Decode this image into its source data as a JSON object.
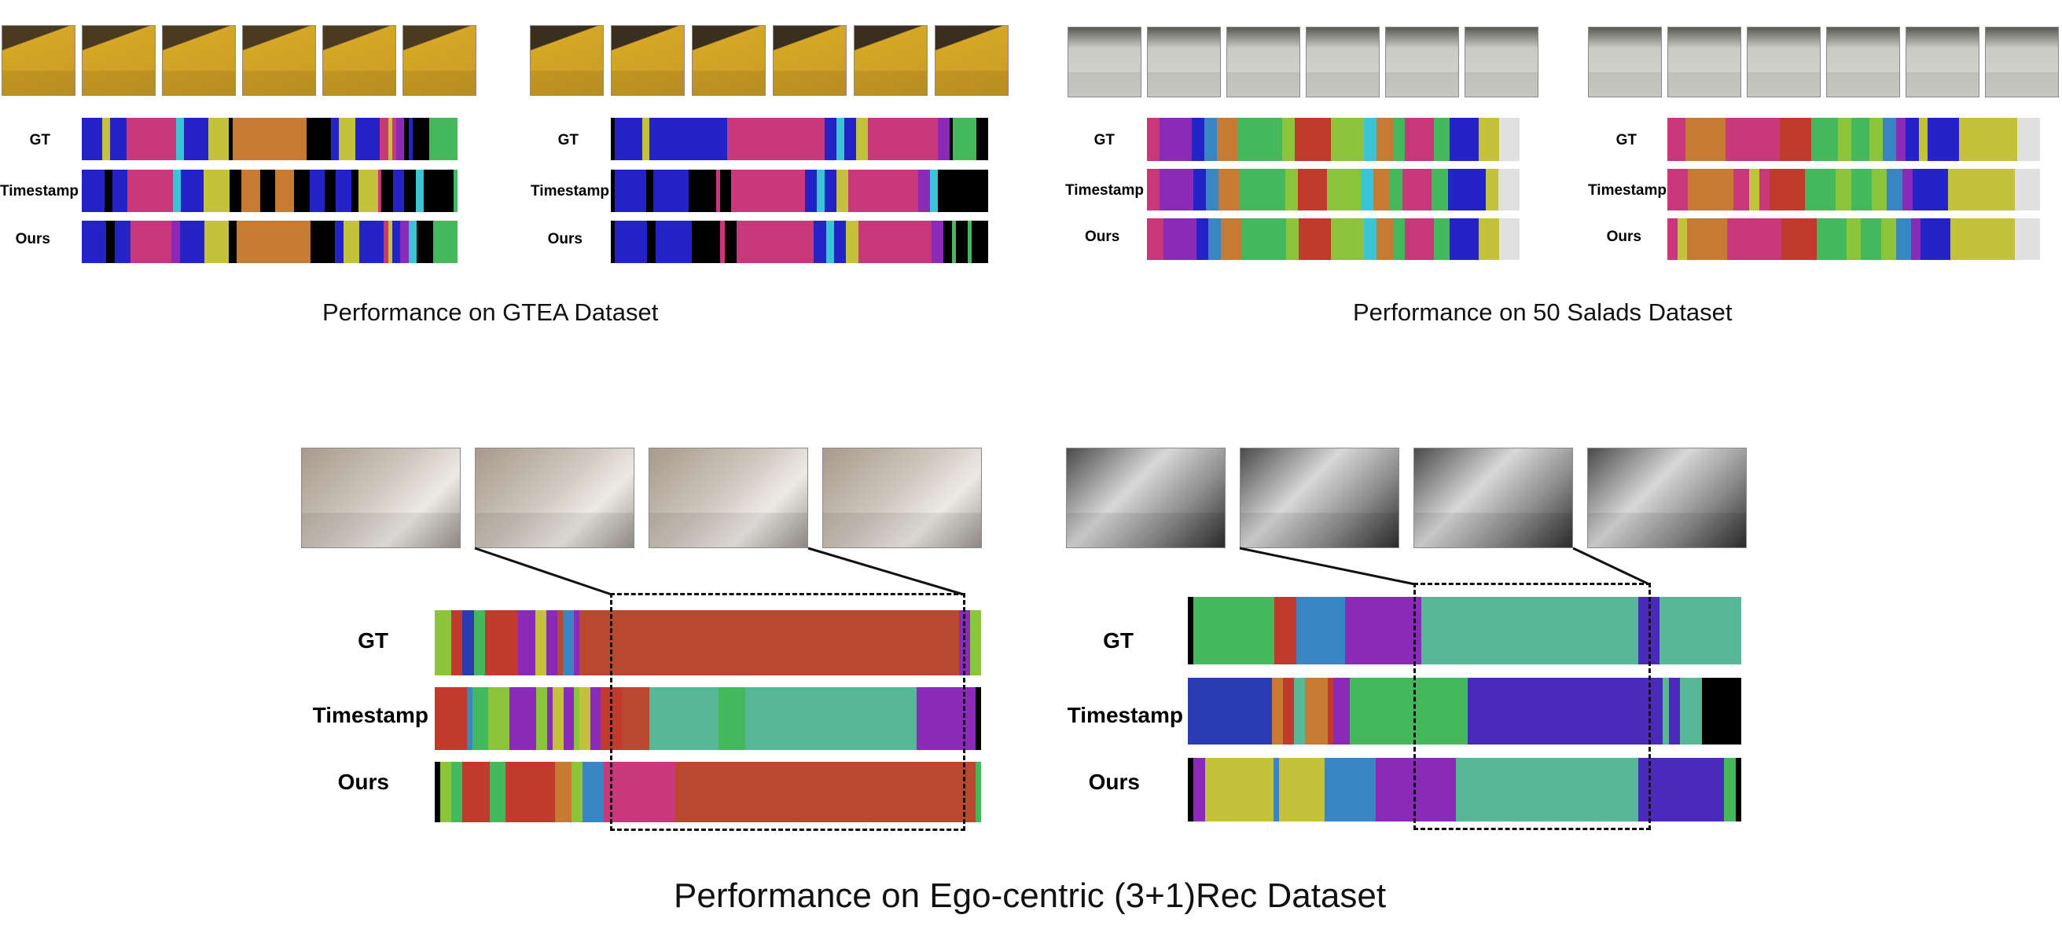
{
  "colors": {
    "blue": "#2323c8",
    "magenta": "#c8387a",
    "black": "#000000",
    "olive": "#c4c23a",
    "orange": "#c67a32",
    "cyan": "#3ac4d6",
    "green": "#44b85a",
    "purple": "#8a2ab8",
    "steel": "#3a86c4",
    "red": "#c23a2e",
    "lightgray": "#e0e0e0",
    "teal": "#56b896",
    "rust": "#b8482e",
    "lime": "#8cc43a",
    "navy": "#2a3cb4",
    "violet": "#4a2ab8"
  },
  "panels": {
    "gtea": {
      "caption": "Performance on GTEA Dataset",
      "rows": [
        "GT",
        "Timestamp",
        "Ours"
      ],
      "left_bars": {
        "GT": [
          [
            "blue",
            5
          ],
          [
            "olive",
            2
          ],
          [
            "blue",
            4
          ],
          [
            "magenta",
            12
          ],
          [
            "cyan",
            2
          ],
          [
            "blue",
            6
          ],
          [
            "olive",
            5
          ],
          [
            "black",
            1
          ],
          [
            "orange",
            18
          ],
          [
            "black",
            6
          ],
          [
            "blue",
            2
          ],
          [
            "olive",
            4
          ],
          [
            "blue",
            6
          ],
          [
            "magenta",
            2
          ],
          [
            "olive",
            1
          ],
          [
            "magenta",
            1
          ],
          [
            "purple",
            2
          ],
          [
            "black",
            1
          ],
          [
            "blue",
            1
          ],
          [
            "black",
            4
          ],
          [
            "green",
            7
          ]
        ],
        "Timestamp": [
          [
            "blue",
            6
          ],
          [
            "black",
            2
          ],
          [
            "blue",
            4
          ],
          [
            "magenta",
            12
          ],
          [
            "cyan",
            2
          ],
          [
            "blue",
            6
          ],
          [
            "olive",
            7
          ],
          [
            "black",
            3
          ],
          [
            "orange",
            5
          ],
          [
            "black",
            4
          ],
          [
            "orange",
            5
          ],
          [
            "black",
            4
          ],
          [
            "blue",
            4
          ],
          [
            "black",
            3
          ],
          [
            "blue",
            4
          ],
          [
            "black",
            2
          ],
          [
            "olive",
            5
          ],
          [
            "magenta",
            1
          ],
          [
            "black",
            3
          ],
          [
            "blue",
            3
          ],
          [
            "black",
            3
          ],
          [
            "cyan",
            2
          ],
          [
            "black",
            8
          ],
          [
            "green",
            1
          ]
        ],
        "Ours": [
          [
            "blue",
            6
          ],
          [
            "black",
            2
          ],
          [
            "blue",
            4
          ],
          [
            "magenta",
            10
          ],
          [
            "purple",
            2
          ],
          [
            "blue",
            6
          ],
          [
            "olive",
            6
          ],
          [
            "black",
            2
          ],
          [
            "orange",
            18
          ],
          [
            "black",
            6
          ],
          [
            "blue",
            2
          ],
          [
            "olive",
            4
          ],
          [
            "blue",
            6
          ],
          [
            "magenta",
            1
          ],
          [
            "olive",
            1
          ],
          [
            "blue",
            2
          ],
          [
            "purple",
            2
          ],
          [
            "cyan",
            2
          ],
          [
            "black",
            4
          ],
          [
            "green",
            6
          ]
        ]
      },
      "right_bars": {
        "GT": [
          [
            "black",
            1
          ],
          [
            "blue",
            7
          ],
          [
            "olive",
            2
          ],
          [
            "blue",
            20
          ],
          [
            "magenta",
            25
          ],
          [
            "blue",
            3
          ],
          [
            "cyan",
            2
          ],
          [
            "blue",
            3
          ],
          [
            "olive",
            3
          ],
          [
            "magenta",
            18
          ],
          [
            "purple",
            3
          ],
          [
            "black",
            1
          ],
          [
            "green",
            6
          ],
          [
            "black",
            3
          ]
        ],
        "Timestamp": [
          [
            "black",
            1
          ],
          [
            "blue",
            8
          ],
          [
            "black",
            2
          ],
          [
            "blue",
            9
          ],
          [
            "black",
            7
          ],
          [
            "magenta",
            1
          ],
          [
            "black",
            3
          ],
          [
            "magenta",
            19
          ],
          [
            "blue",
            3
          ],
          [
            "cyan",
            2
          ],
          [
            "blue",
            3
          ],
          [
            "olive",
            3
          ],
          [
            "magenta",
            18
          ],
          [
            "purple",
            3
          ],
          [
            "cyan",
            2
          ],
          [
            "black",
            13
          ]
        ],
        "Ours": [
          [
            "black",
            1
          ],
          [
            "blue",
            8
          ],
          [
            "black",
            2
          ],
          [
            "blue",
            9
          ],
          [
            "black",
            7
          ],
          [
            "magenta",
            1
          ],
          [
            "black",
            3
          ],
          [
            "magenta",
            19
          ],
          [
            "blue",
            3
          ],
          [
            "cyan",
            2
          ],
          [
            "blue",
            3
          ],
          [
            "olive",
            3
          ],
          [
            "magenta",
            18
          ],
          [
            "purple",
            3
          ],
          [
            "black",
            2
          ],
          [
            "green",
            1
          ],
          [
            "black",
            3
          ],
          [
            "green",
            1
          ],
          [
            "black",
            4
          ]
        ]
      }
    },
    "salads": {
      "caption": "Performance on 50 Salads Dataset",
      "rows": [
        "GT",
        "Timestamp",
        "Ours"
      ],
      "left_bars": {
        "GT": [
          [
            "magenta",
            3
          ],
          [
            "purple",
            8
          ],
          [
            "blue",
            3
          ],
          [
            "steel",
            3
          ],
          [
            "orange",
            5
          ],
          [
            "green",
            11
          ],
          [
            "lime",
            3
          ],
          [
            "red",
            9
          ],
          [
            "lime",
            8
          ],
          [
            "cyan",
            3
          ],
          [
            "orange",
            4
          ],
          [
            "green",
            3
          ],
          [
            "magenta",
            7
          ],
          [
            "green",
            4
          ],
          [
            "blue",
            7
          ],
          [
            "olive",
            5
          ],
          [
            "lightgray",
            5
          ]
        ],
        "Timestamp": [
          [
            "magenta",
            3
          ],
          [
            "purple",
            8
          ],
          [
            "blue",
            3
          ],
          [
            "steel",
            3
          ],
          [
            "orange",
            5
          ],
          [
            "green",
            11
          ],
          [
            "lime",
            3
          ],
          [
            "red",
            7
          ],
          [
            "lime",
            8
          ],
          [
            "cyan",
            3
          ],
          [
            "orange",
            4
          ],
          [
            "green",
            3
          ],
          [
            "magenta",
            7
          ],
          [
            "green",
            4
          ],
          [
            "blue",
            9
          ],
          [
            "olive",
            3
          ],
          [
            "lightgray",
            5
          ]
        ],
        "Ours": [
          [
            "magenta",
            4
          ],
          [
            "purple",
            8
          ],
          [
            "blue",
            3
          ],
          [
            "steel",
            3
          ],
          [
            "orange",
            5
          ],
          [
            "green",
            11
          ],
          [
            "lime",
            3
          ],
          [
            "red",
            8
          ],
          [
            "lime",
            8
          ],
          [
            "cyan",
            3
          ],
          [
            "orange",
            4
          ],
          [
            "green",
            3
          ],
          [
            "magenta",
            7
          ],
          [
            "green",
            4
          ],
          [
            "blue",
            7
          ],
          [
            "olive",
            5
          ],
          [
            "lightgray",
            5
          ]
        ]
      },
      "right_bars": {
        "GT": [
          [
            "magenta",
            4
          ],
          [
            "orange",
            9
          ],
          [
            "magenta",
            12
          ],
          [
            "red",
            7
          ],
          [
            "green",
            6
          ],
          [
            "lime",
            3
          ],
          [
            "green",
            4
          ],
          [
            "lime",
            3
          ],
          [
            "steel",
            3
          ],
          [
            "purple",
            2
          ],
          [
            "blue",
            3
          ],
          [
            "olive",
            2
          ],
          [
            "blue",
            7
          ],
          [
            "olive",
            13
          ],
          [
            "lightgray",
            5
          ]
        ],
        "Timestamp": [
          [
            "magenta",
            4
          ],
          [
            "orange",
            9
          ],
          [
            "magenta",
            3
          ],
          [
            "olive",
            2
          ],
          [
            "magenta",
            2
          ],
          [
            "red",
            7
          ],
          [
            "green",
            6
          ],
          [
            "lime",
            3
          ],
          [
            "green",
            4
          ],
          [
            "lime",
            3
          ],
          [
            "steel",
            3
          ],
          [
            "purple",
            2
          ],
          [
            "blue",
            7
          ],
          [
            "olive",
            13
          ],
          [
            "lightgray",
            5
          ]
        ],
        "Ours": [
          [
            "magenta",
            2
          ],
          [
            "olive",
            2
          ],
          [
            "orange",
            8
          ],
          [
            "magenta",
            11
          ],
          [
            "red",
            7
          ],
          [
            "green",
            6
          ],
          [
            "lime",
            3
          ],
          [
            "green",
            4
          ],
          [
            "lime",
            3
          ],
          [
            "steel",
            3
          ],
          [
            "purple",
            2
          ],
          [
            "blue",
            6
          ],
          [
            "olive",
            13
          ],
          [
            "lightgray",
            5
          ]
        ]
      }
    },
    "ego": {
      "caption": "Performance on Ego-centric (3+1)Rec Dataset",
      "rows": [
        "GT",
        "Timestamp",
        "Ours"
      ],
      "left_bars": {
        "GT": [
          [
            "lime",
            3
          ],
          [
            "red",
            2
          ],
          [
            "navy",
            2
          ],
          [
            "green",
            2
          ],
          [
            "red",
            6
          ],
          [
            "purple",
            3
          ],
          [
            "olive",
            2
          ],
          [
            "purple",
            2
          ],
          [
            "rust",
            1
          ],
          [
            "steel",
            2
          ],
          [
            "purple",
            1
          ],
          [
            "rust",
            68
          ],
          [
            "purple",
            2
          ],
          [
            "lime",
            2
          ]
        ],
        "Timestamp": [
          [
            "red",
            6
          ],
          [
            "steel",
            1
          ],
          [
            "green",
            3
          ],
          [
            "lime",
            4
          ],
          [
            "purple",
            5
          ],
          [
            "lime",
            2
          ],
          [
            "purple",
            1
          ],
          [
            "olive",
            2
          ],
          [
            "purple",
            2
          ],
          [
            "lime",
            1
          ],
          [
            "olive",
            2
          ],
          [
            "purple",
            2
          ],
          [
            "red",
            4
          ],
          [
            "rust",
            5
          ],
          [
            "teal",
            13
          ],
          [
            "green",
            5
          ],
          [
            "teal",
            32
          ],
          [
            "purple",
            11
          ],
          [
            "black",
            1
          ]
        ],
        "Ours": [
          [
            "black",
            1
          ],
          [
            "lime",
            2
          ],
          [
            "green",
            2
          ],
          [
            "red",
            5
          ],
          [
            "green",
            3
          ],
          [
            "red",
            9
          ],
          [
            "orange",
            3
          ],
          [
            "lime",
            2
          ],
          [
            "steel",
            4
          ],
          [
            "magenta",
            13
          ],
          [
            "rust",
            55
          ],
          [
            "green",
            1
          ]
        ]
      },
      "right_bars": {
        "GT": [
          [
            "black",
            1
          ],
          [
            "green",
            15
          ],
          [
            "red",
            4
          ],
          [
            "steel",
            9
          ],
          [
            "purple",
            14
          ],
          [
            "teal",
            40
          ],
          [
            "violet",
            4
          ],
          [
            "teal",
            15
          ]
        ],
        "Timestamp": [
          [
            "navy",
            15
          ],
          [
            "orange",
            2
          ],
          [
            "red",
            2
          ],
          [
            "teal",
            2
          ],
          [
            "orange",
            4
          ],
          [
            "red",
            1
          ],
          [
            "purple",
            3
          ],
          [
            "green",
            21
          ],
          [
            "violet",
            35
          ],
          [
            "teal",
            1
          ],
          [
            "violet",
            2
          ],
          [
            "teal",
            4
          ],
          [
            "black",
            7
          ]
        ],
        "Ours": [
          [
            "black",
            1
          ],
          [
            "purple",
            2
          ],
          [
            "olive",
            12
          ],
          [
            "steel",
            1
          ],
          [
            "olive",
            8
          ],
          [
            "steel",
            9
          ],
          [
            "purple",
            14
          ],
          [
            "teal",
            32
          ],
          [
            "violet",
            15
          ],
          [
            "green",
            2
          ],
          [
            "black",
            1
          ]
        ]
      }
    }
  }
}
